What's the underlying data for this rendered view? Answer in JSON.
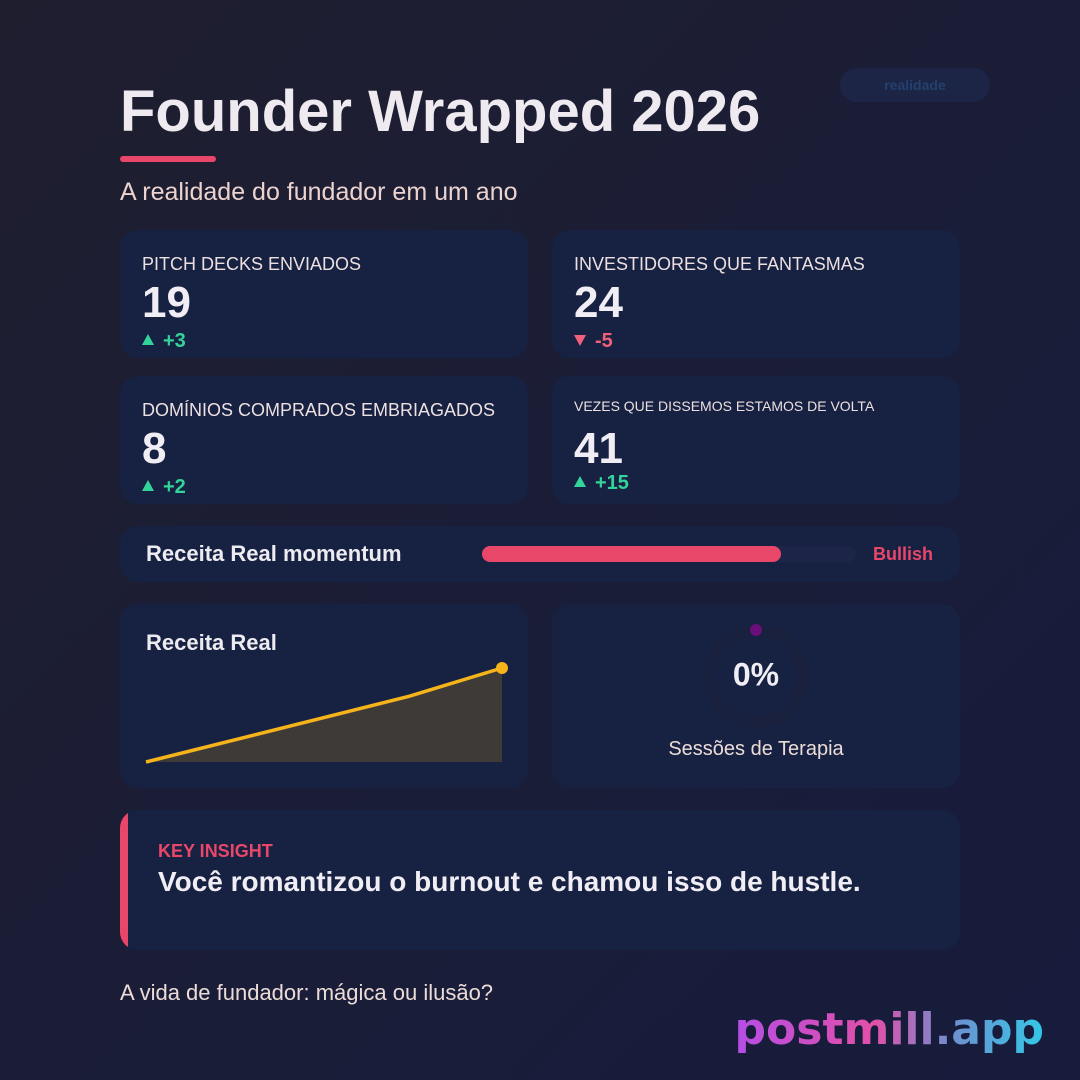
{
  "badge": "realidade",
  "header": {
    "title": "Founder Wrapped 2026",
    "subtitle": "A realidade do fundador em um ano"
  },
  "stats": [
    {
      "label": "PITCH DECKS ENVIADOS",
      "value": 19,
      "delta": "+3",
      "trend": "up"
    },
    {
      "label": "INVESTIDORES QUE FANTASMAS",
      "value": 24,
      "delta": "-5",
      "trend": "down"
    },
    {
      "label": "DOMÍNIOS COMPRADOS EMBRIAGADOS",
      "value": 8,
      "delta": "+2",
      "trend": "up"
    },
    {
      "label": "VEZES QUE DISSEMOS ESTAMOS DE VOLTA",
      "value": 41,
      "delta": "+15",
      "trend": "up"
    }
  ],
  "momentum": {
    "label": "Receita Real momentum",
    "value": 80,
    "status": "Bullish",
    "color": "#e8476a"
  },
  "chart_data": {
    "type": "area",
    "title": "Receita Real",
    "x": [
      0,
      74,
      100
    ],
    "values": [
      0,
      70,
      100
    ],
    "xlim": [
      0,
      100
    ],
    "ylim": [
      0,
      100
    ],
    "color": "#f5b41a"
  },
  "gauge": {
    "value": 0,
    "value_label": "0%",
    "label": "Sessões de Terapia",
    "color": "#6a0f7a"
  },
  "insight": {
    "kicker": "KEY INSIGHT",
    "text": "Você romantizou o burnout e chamou isso de hustle."
  },
  "footer": "A vida de fundador: mágica ou ilusão?",
  "brand": "postmill.app"
}
